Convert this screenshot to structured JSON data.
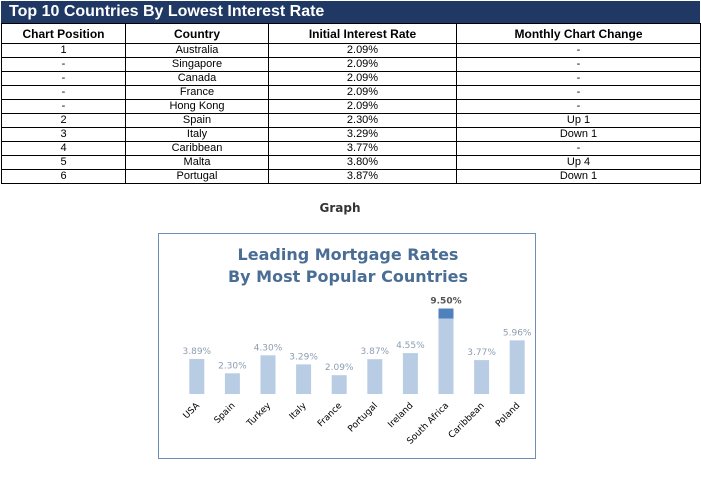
{
  "table": {
    "title": "Top 10 Countries By Lowest Interest Rate",
    "headers": [
      "Chart Position",
      "Country",
      "Initial Interest Rate",
      "Monthly Chart Change"
    ],
    "rows": [
      [
        "1",
        "Australia",
        "2.09%",
        "-"
      ],
      [
        "-",
        "Singapore",
        "2.09%",
        "-"
      ],
      [
        "-",
        "Canada",
        "2.09%",
        "-"
      ],
      [
        "-",
        "France",
        "2.09%",
        "-"
      ],
      [
        "-",
        "Hong Kong",
        "2.09%",
        "-"
      ],
      [
        "2",
        "Spain",
        "2.30%",
        "Up 1"
      ],
      [
        "3",
        "Italy",
        "3.29%",
        "Down 1"
      ],
      [
        "4",
        "Caribbean",
        "3.77%",
        "-"
      ],
      [
        "5",
        "Malta",
        "3.80%",
        "Up 4"
      ],
      [
        "6",
        "Portugal",
        "3.87%",
        "Down 1"
      ]
    ]
  },
  "graph_label": "Graph",
  "colors": {
    "header_bg": "#1f3864",
    "bar": "#b8cce4",
    "bar_top": "#4f81bd",
    "title": "#4a6d95"
  },
  "chart_data": {
    "type": "bar",
    "title_line1": "Leading Mortgage Rates",
    "title_line2": "By Most Popular Countries",
    "categories": [
      "USA",
      "Spain",
      "Turkey",
      "Italy",
      "France",
      "Portugal",
      "Ireland",
      "South Africa",
      "Caribbean",
      "Poland"
    ],
    "values": [
      3.89,
      2.3,
      4.3,
      3.29,
      2.09,
      3.87,
      4.55,
      9.5,
      3.77,
      5.96
    ],
    "data_labels": [
      "3.89%",
      "2.30%",
      "4.30%",
      "3.29%",
      "2.09%",
      "3.87%",
      "4.55%",
      "9.50%",
      "3.77%",
      "5.96%"
    ],
    "ylim": [
      0,
      10
    ],
    "grid": false,
    "legend": "none"
  }
}
